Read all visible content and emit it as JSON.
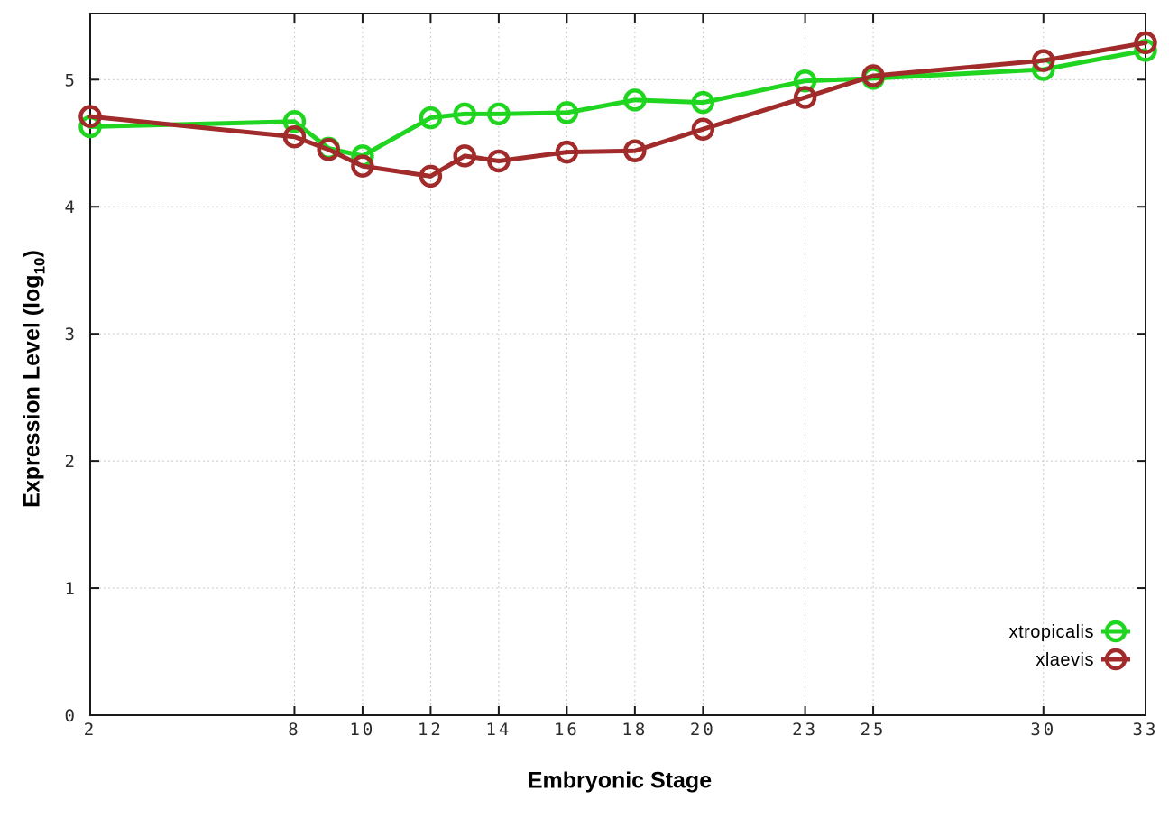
{
  "chart_data": {
    "type": "line",
    "title": "",
    "xlabel": "Embryonic Stage",
    "ylabel": "Expression Level (log10)",
    "ylabel_parts": {
      "prefix": "Expression Level (log",
      "sub": "10",
      "suffix": ")"
    },
    "x": [
      2,
      8,
      9,
      10,
      12,
      13,
      14,
      16,
      18,
      20,
      23,
      25,
      30,
      33
    ],
    "series": [
      {
        "name": "xtropicalis",
        "color": "#1fd51f",
        "marker": "open-circle",
        "values": [
          4.63,
          4.67,
          4.46,
          4.4,
          4.7,
          4.73,
          4.73,
          4.74,
          4.84,
          4.82,
          4.99,
          5.01,
          5.08,
          5.23
        ]
      },
      {
        "name": "xlaevis",
        "color": "#a12a2a",
        "marker": "open-circle",
        "values": [
          4.71,
          4.55,
          4.45,
          4.32,
          4.24,
          4.4,
          4.36,
          4.43,
          4.44,
          4.61,
          4.86,
          5.03,
          5.15,
          5.29
        ]
      }
    ],
    "xtick_labels": [
      "2",
      "8",
      "10",
      "12",
      "14",
      "16",
      "18",
      "20",
      "23",
      "25",
      "30",
      "33"
    ],
    "xtick_values": [
      2,
      8,
      10,
      12,
      14,
      16,
      18,
      20,
      23,
      25,
      30,
      33
    ],
    "ytick_labels": [
      "0",
      "1",
      "2",
      "3",
      "4",
      "5"
    ],
    "ytick_values": [
      0,
      1,
      2,
      3,
      4,
      5
    ],
    "xlim": [
      2,
      33
    ],
    "ylim": [
      0,
      5.52
    ],
    "grid": true,
    "legend_position": "bottom-right",
    "legend_entries": [
      "xtropicalis",
      "xlaevis"
    ],
    "colors": {
      "xtropicalis": "#1fd51f",
      "xlaevis": "#a12a2a",
      "grid": "#c9c9c9",
      "axis": "#1a1a1a",
      "tick_text": "#2b2b2b",
      "background": "#ffffff"
    }
  }
}
